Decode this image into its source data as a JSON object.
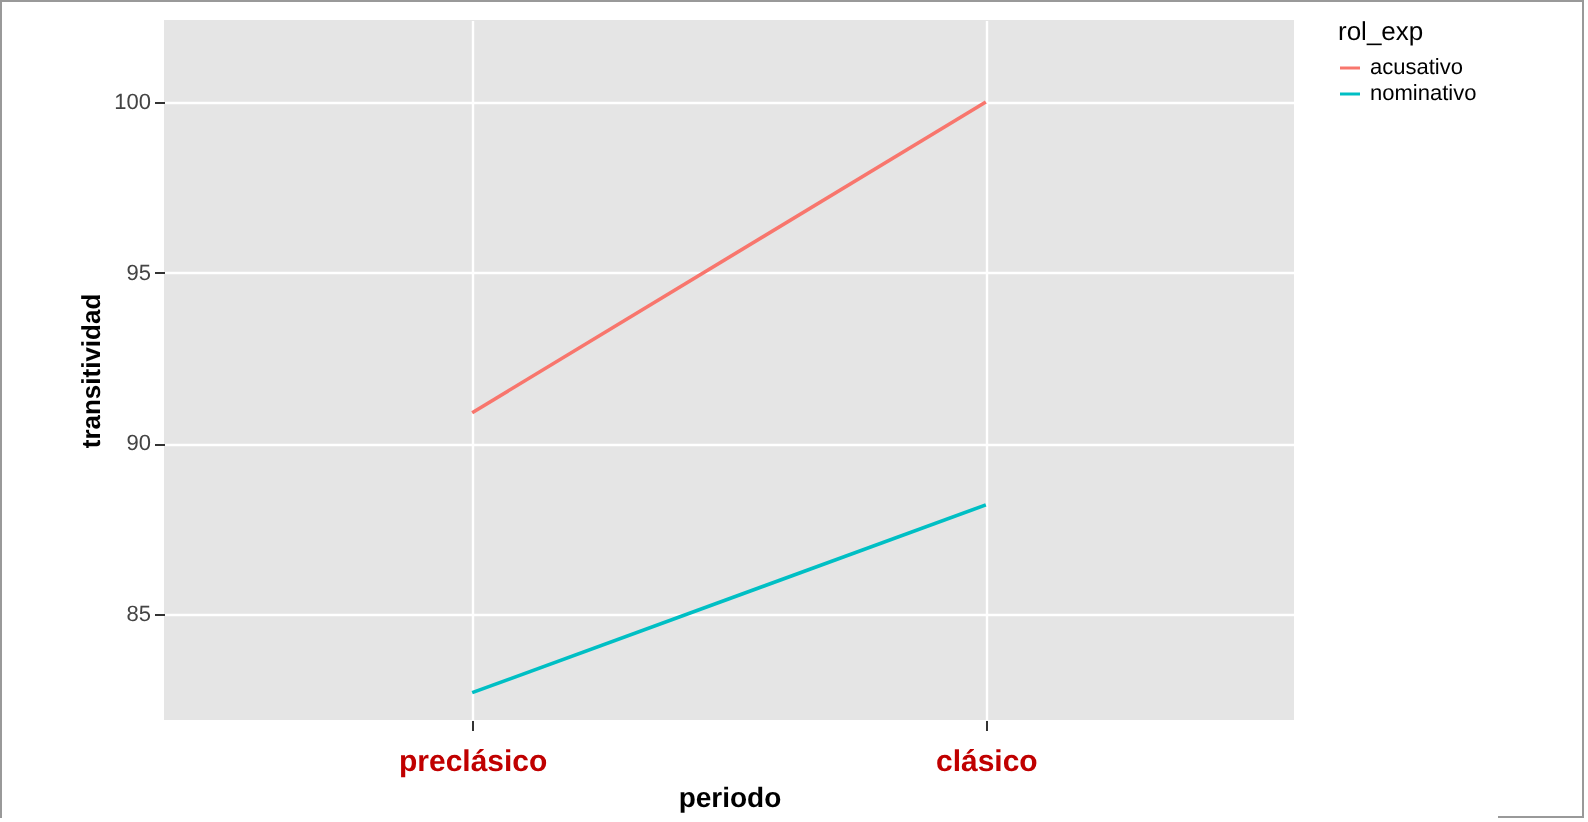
{
  "chart_data": {
    "type": "line",
    "xlabel": "periodo",
    "ylabel": "transitividad",
    "legend_title": "rol_exp",
    "categories": [
      "preclásico",
      "clásico"
    ],
    "series": [
      {
        "name": "acusativo",
        "color": "#f8766d",
        "values": [
          90.9,
          100
        ]
      },
      {
        "name": "nominativo",
        "color": "#00bfc4",
        "values": [
          82.7,
          88.2
        ]
      }
    ],
    "ylim": [
      81.9,
      102.4
    ],
    "yticks": [
      85,
      90,
      95,
      100
    ],
    "grid": true,
    "legend": "right",
    "marker": "none",
    "line_style": "solid"
  }
}
